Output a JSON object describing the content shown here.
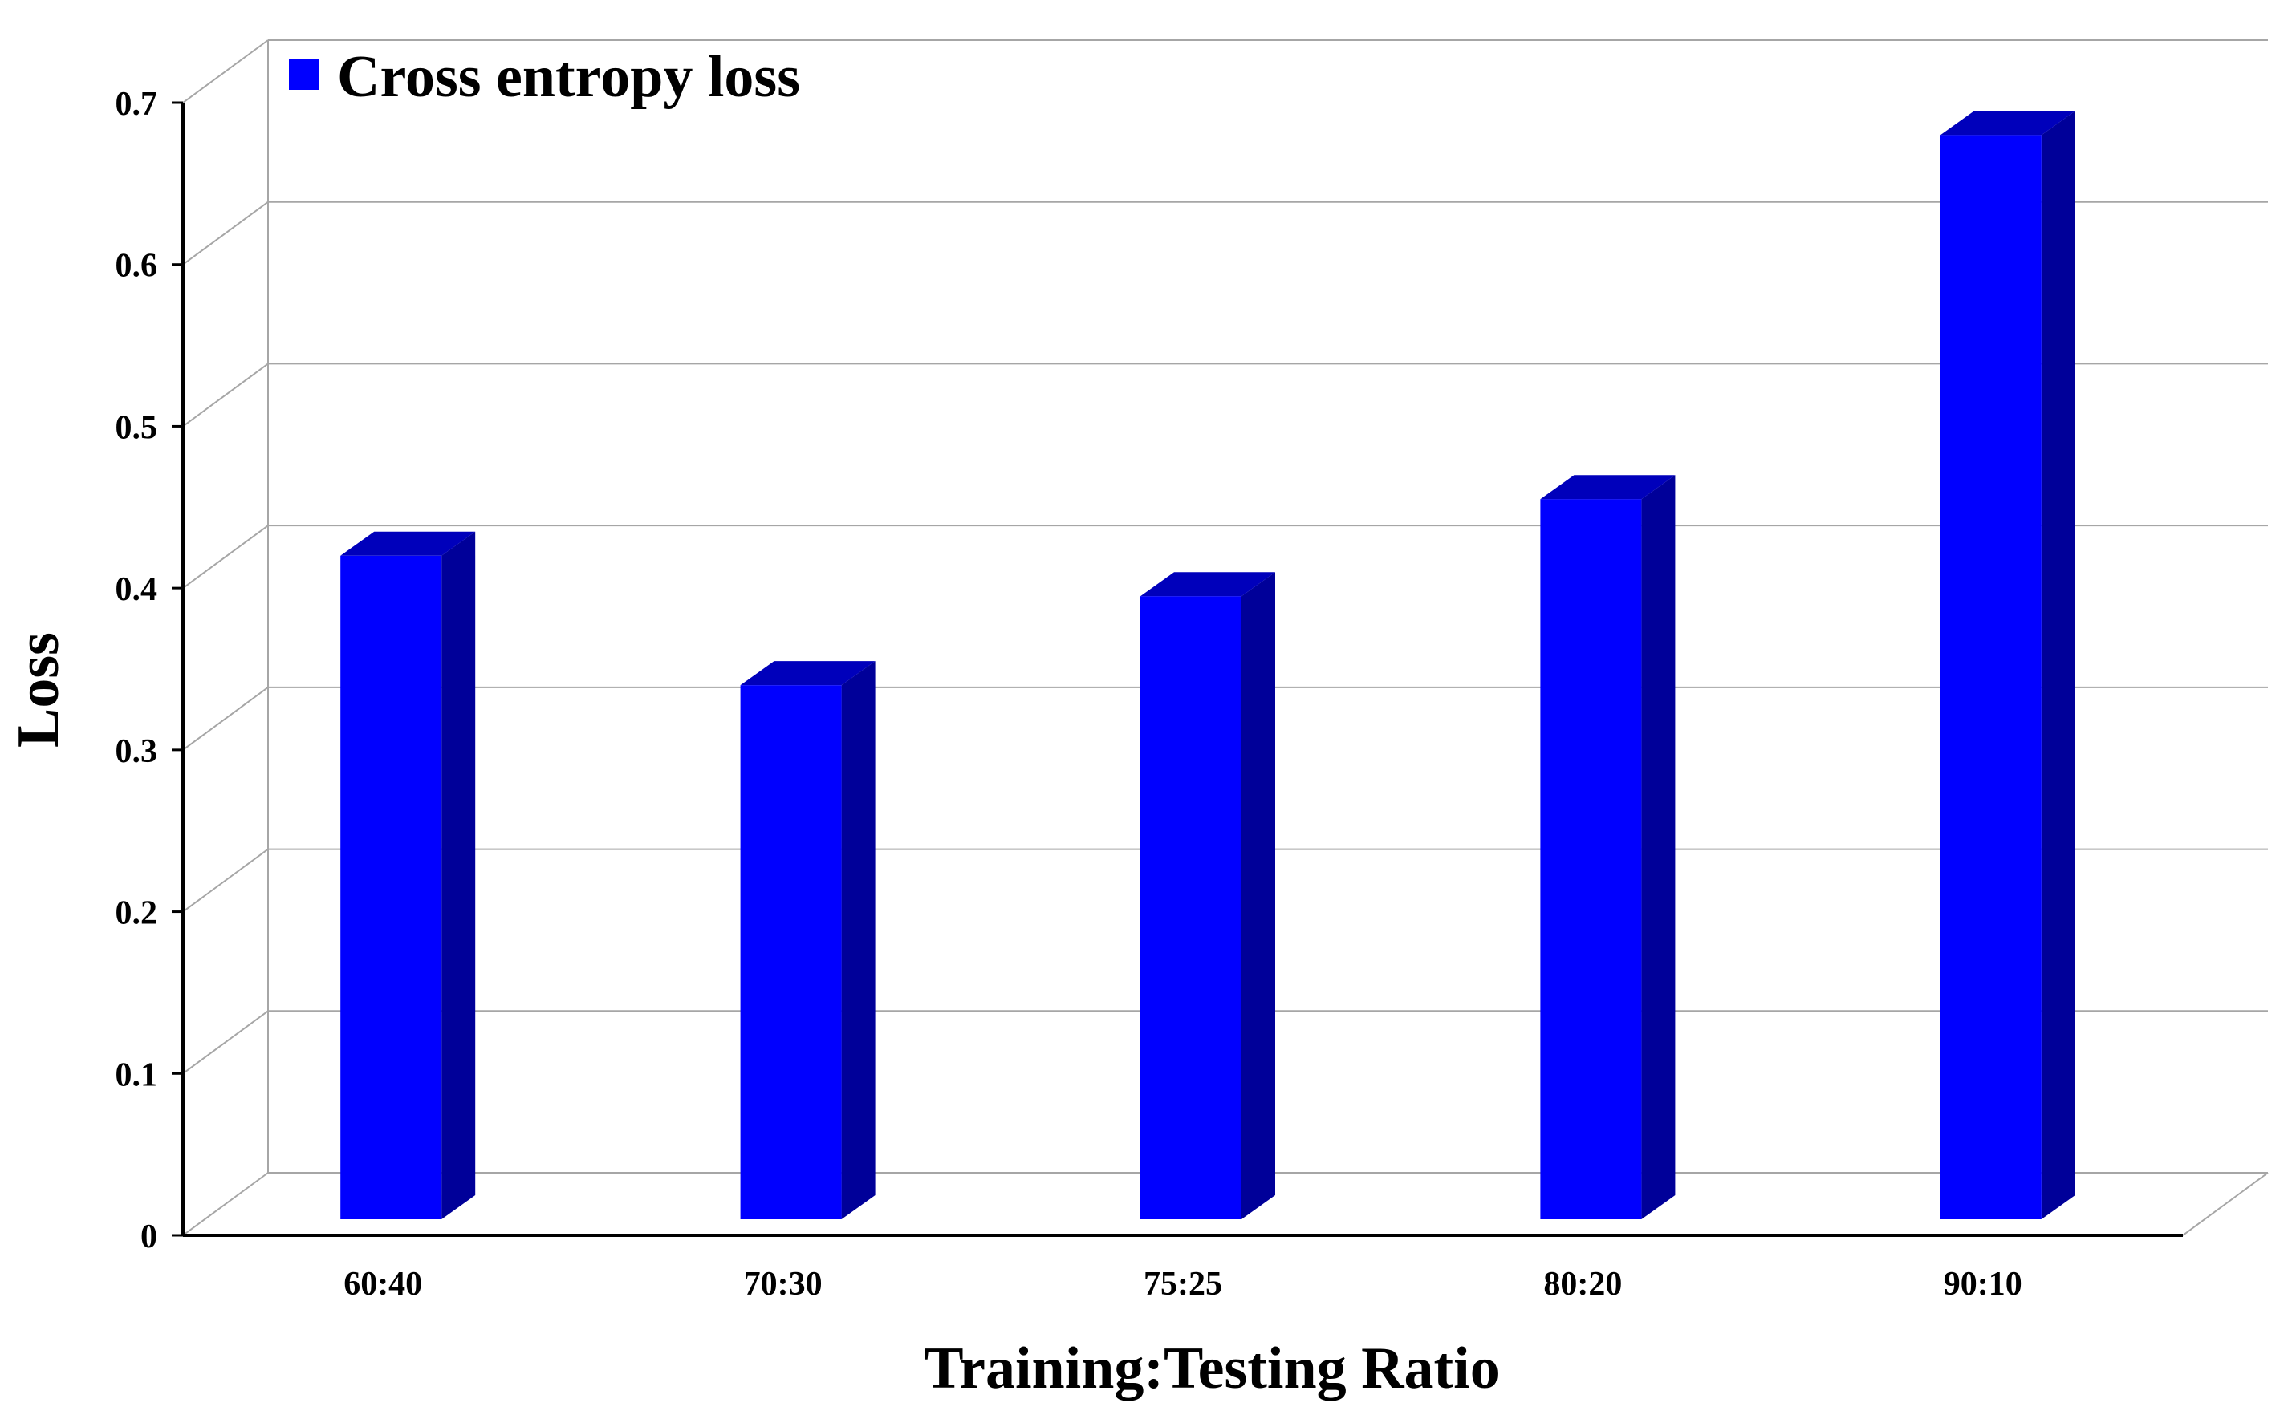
{
  "chart_data": {
    "type": "bar",
    "title": "",
    "xlabel": "Training:Testing Ratio",
    "ylabel": "Loss",
    "categories": [
      "60:40",
      "70:30",
      "75:25",
      "80:20",
      "90:10"
    ],
    "series": [
      {
        "name": "Cross entropy loss",
        "values": [
          0.42,
          0.34,
          0.395,
          0.455,
          0.68
        ]
      }
    ],
    "ylim": [
      0,
      0.7
    ],
    "yticks": [
      "0",
      "0.1",
      "0.2",
      "0.3",
      "0.4",
      "0.5",
      "0.6",
      "0.7"
    ],
    "grid": true,
    "legend_position": "top-left",
    "style": "3d",
    "colors": {
      "bar_front": "#0000FF",
      "bar_side": "#000099",
      "bar_top": "#0000BB",
      "gridline": "#A6A6A6",
      "axis": "#000000"
    }
  }
}
